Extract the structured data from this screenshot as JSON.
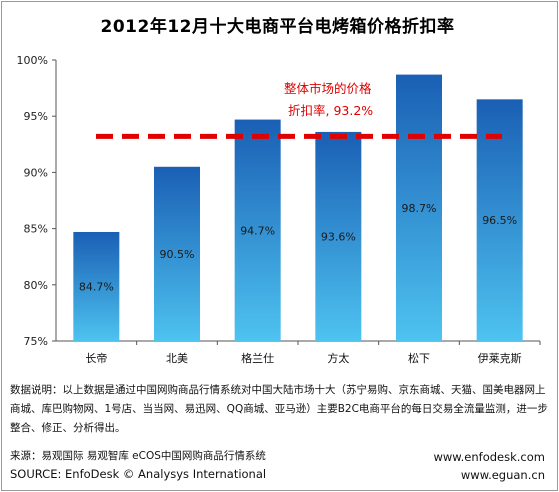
{
  "chart_data": {
    "type": "bar",
    "title": "2012年12月十大电商平台电烤箱价格折扣率",
    "categories": [
      "长帝",
      "北美",
      "格兰仕",
      "方太",
      "松下",
      "伊莱克斯"
    ],
    "values": [
      84.7,
      90.5,
      94.7,
      93.6,
      98.7,
      96.5
    ],
    "data_labels": [
      "84.7%",
      "90.5%",
      "94.7%",
      "93.6%",
      "98.7%",
      "96.5%"
    ],
    "yticks": [
      75,
      80,
      85,
      90,
      95,
      100
    ],
    "ytick_labels": [
      "75%",
      "80%",
      "85%",
      "90%",
      "95%",
      "100%"
    ],
    "ylim": [
      75,
      100
    ],
    "grid": false,
    "reference_line": {
      "value": 93.2,
      "label_line1": "整体市场的价格",
      "label_line2": "折扣率, 93.2%",
      "color": "#e00000"
    },
    "bar_color_top": "#1a5fb4",
    "bar_color_bottom": "#4ec3f0"
  },
  "footer": {
    "note": "数据说明：以上数据是通过中国网购商品行情系统对中国大陆市场十大（苏宁易购、京东商城、天猫、国美电器网上商城、库巴购物网、1号店、当当网、易迅网、QQ商城、亚马逊）主要B2C电商平台的每日交易全流量监测，进一步整合、修正、分析得出。",
    "source_cn": "来源：易观国际  易观智库  eCOS中国网购商品行情系统",
    "source_en": "SOURCE: EnfoDesk © Analysys International",
    "url1": "www.enfodesk.com",
    "url2": "www.eguan.cn"
  }
}
